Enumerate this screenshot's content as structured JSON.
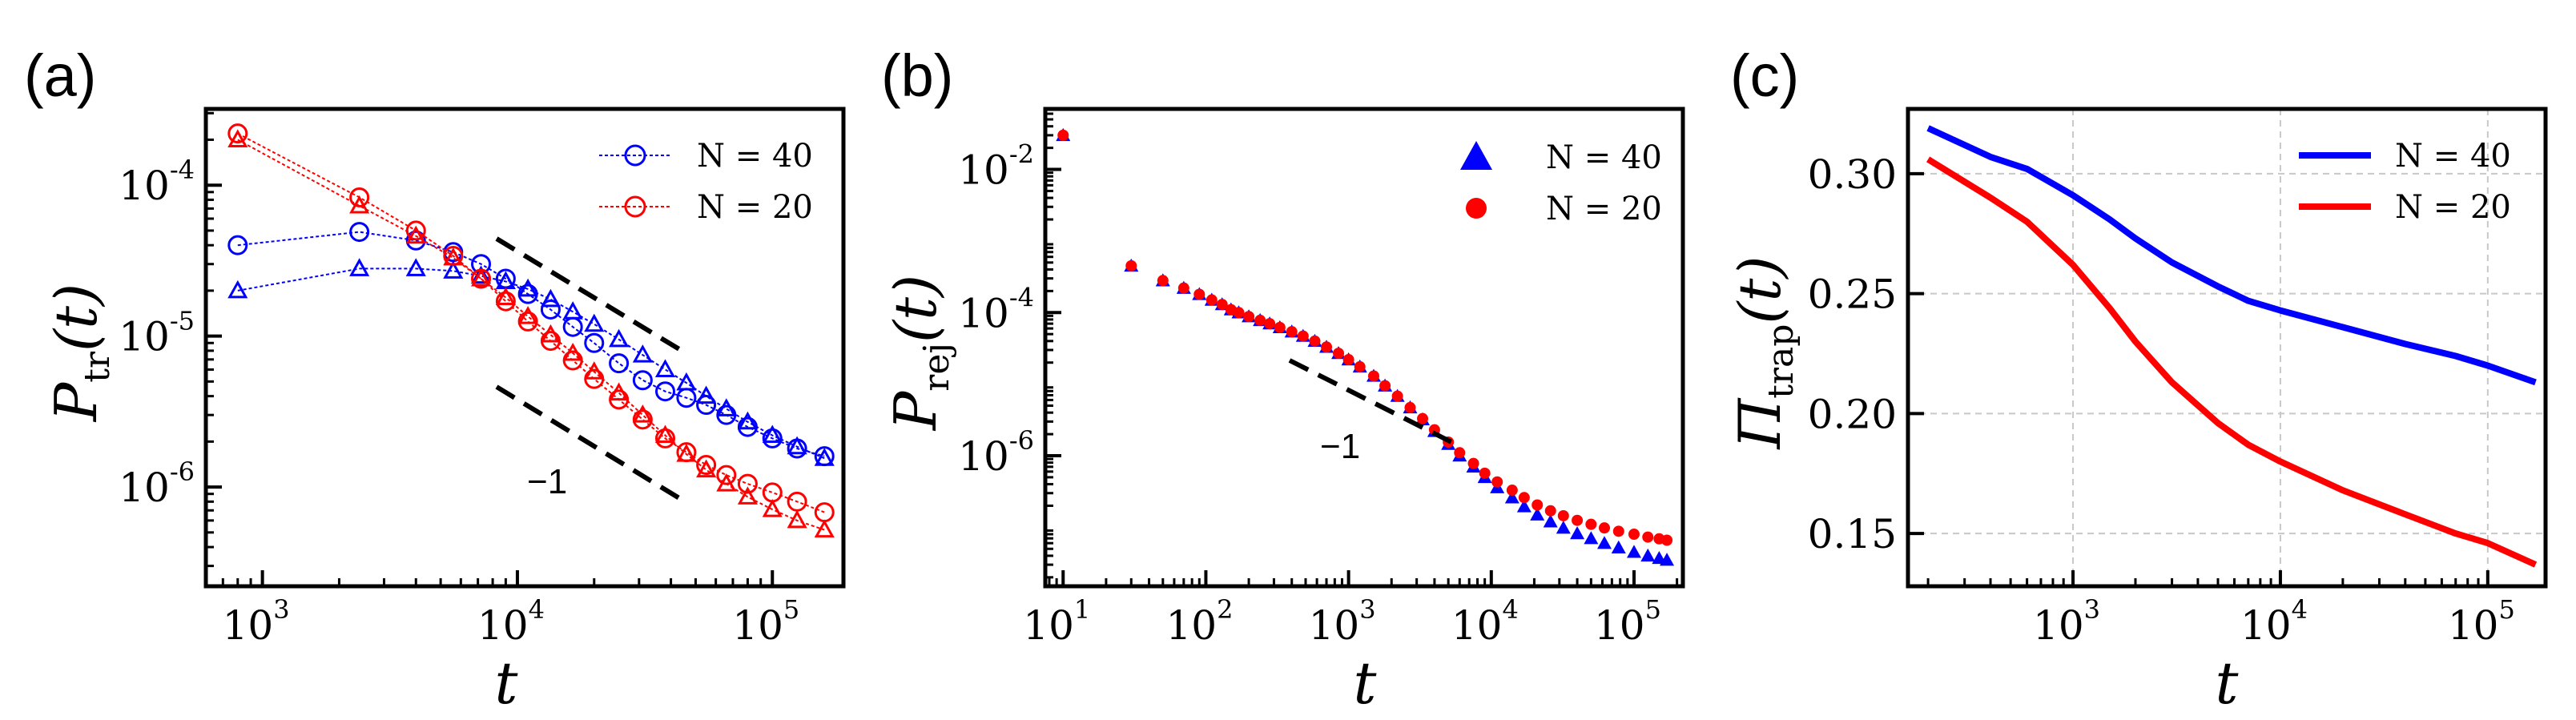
{
  "chart_data": [
    {
      "panel": "(a)",
      "type": "scatter",
      "xscale": "log",
      "yscale": "log",
      "xlim": [
        600,
        190000
      ],
      "ylim": [
        2.2e-07,
        0.00032
      ],
      "xlabel": "t",
      "ylabel_main": "P",
      "ylabel_sub": "tr",
      "ylabel_tail": "(t)",
      "xticks": [
        {
          "value": 1000,
          "base": "10",
          "exp": "3"
        },
        {
          "value": 10000,
          "base": "10",
          "exp": "4"
        },
        {
          "value": 100000,
          "base": "10",
          "exp": "5"
        }
      ],
      "yticks": [
        {
          "value": 1e-06,
          "base": "10",
          "exp": "-6"
        },
        {
          "value": 1e-05,
          "base": "10",
          "exp": "-5"
        },
        {
          "value": 0.0001,
          "base": "10",
          "exp": "-4"
        }
      ],
      "legend": {
        "position": "top-right",
        "entries": [
          {
            "label": "N = 40",
            "color": "#0000ff"
          },
          {
            "label": "N = 20",
            "color": "#ff0000"
          }
        ]
      },
      "annotation": "−1",
      "guide_slope": -1,
      "series": [
        {
          "name": "N = 40 circles",
          "color": "#0000ff",
          "marker": "circle",
          "x": [
            800,
            2400,
            4000,
            5600,
            7200,
            9000,
            11000,
            13500,
            16500,
            20000,
            25000,
            31000,
            38000,
            46000,
            55000,
            66000,
            80000,
            100000,
            125000,
            160000
          ],
          "y": [
            4e-05,
            4.9e-05,
            4.3e-05,
            3.6e-05,
            3e-05,
            2.4e-05,
            1.9e-05,
            1.5e-05,
            1.15e-05,
            9e-06,
            6.6e-06,
            5.1e-06,
            4.3e-06,
            3.9e-06,
            3.5e-06,
            3e-06,
            2.5e-06,
            2.1e-06,
            1.8e-06,
            1.6e-06
          ]
        },
        {
          "name": "N = 40 triangles",
          "color": "#0000ff",
          "marker": "triangle",
          "x": [
            800,
            2400,
            4000,
            5600,
            7200,
            9000,
            11000,
            13500,
            16500,
            20000,
            25000,
            31000,
            38000,
            46000,
            55000,
            66000,
            80000,
            100000,
            125000,
            160000
          ],
          "y": [
            2e-05,
            2.8e-05,
            2.8e-05,
            2.7e-05,
            2.5e-05,
            2.3e-05,
            2.05e-05,
            1.75e-05,
            1.45e-05,
            1.2e-05,
            9.5e-06,
            7.5e-06,
            6e-06,
            4.9e-06,
            4e-06,
            3.3e-06,
            2.7e-06,
            2.2e-06,
            1.85e-06,
            1.55e-06
          ]
        },
        {
          "name": "N = 20 circles",
          "color": "#ff0000",
          "marker": "circle",
          "x": [
            800,
            2400,
            4000,
            5600,
            7200,
            9000,
            11000,
            13500,
            16500,
            20000,
            25000,
            31000,
            38000,
            46000,
            55000,
            66000,
            80000,
            100000,
            125000,
            160000
          ],
          "y": [
            0.00022,
            8.3e-05,
            5e-05,
            3.4e-05,
            2.4e-05,
            1.7e-05,
            1.25e-05,
            9.3e-06,
            6.9e-06,
            5.2e-06,
            3.8e-06,
            2.8e-06,
            2.1e-06,
            1.7e-06,
            1.4e-06,
            1.2e-06,
            1.05e-06,
            9.2e-07,
            8e-07,
            6.8e-07
          ]
        },
        {
          "name": "N = 20 triangles",
          "color": "#ff0000",
          "marker": "triangle",
          "x": [
            800,
            2400,
            4000,
            5600,
            7200,
            9000,
            11000,
            13500,
            16500,
            20000,
            25000,
            31000,
            38000,
            46000,
            55000,
            66000,
            80000,
            100000,
            125000,
            160000
          ],
          "y": [
            0.0002,
            7.3e-05,
            4.6e-05,
            3.3e-05,
            2.4e-05,
            1.8e-05,
            1.35e-05,
            1.02e-05,
            7.7e-06,
            5.8e-06,
            4.2e-06,
            3e-06,
            2.2e-06,
            1.65e-06,
            1.3e-06,
            1.05e-06,
            8.6e-07,
            7.1e-07,
            6e-07,
            5.2e-07
          ]
        }
      ]
    },
    {
      "panel": "(b)",
      "type": "scatter",
      "xscale": "log",
      "yscale": "log",
      "xlim": [
        7.5,
        220000
      ],
      "ylim": [
        1.5e-08,
        0.07
      ],
      "xlabel": "t",
      "ylabel_main": "P",
      "ylabel_sub": "rej",
      "ylabel_tail": "(t)",
      "xticks": [
        {
          "value": 10,
          "base": "10",
          "exp": "1"
        },
        {
          "value": 100,
          "base": "10",
          "exp": "2"
        },
        {
          "value": 1000,
          "base": "10",
          "exp": "3"
        },
        {
          "value": 10000,
          "base": "10",
          "exp": "4"
        },
        {
          "value": 100000,
          "base": "10",
          "exp": "5"
        }
      ],
      "yticks": [
        {
          "value": 1e-06,
          "base": "10",
          "exp": "-6"
        },
        {
          "value": 0.0001,
          "base": "10",
          "exp": "-4"
        },
        {
          "value": 0.01,
          "base": "10",
          "exp": "-2"
        }
      ],
      "legend": {
        "position": "top-right",
        "entries": [
          {
            "label": "N = 40",
            "color": "#0000ff"
          },
          {
            "label": "N = 20",
            "color": "#ff0000"
          }
        ]
      },
      "annotation": "−1",
      "guide_slope": -1,
      "series": [
        {
          "name": "N = 40",
          "color": "#0000ff",
          "marker": "triangle",
          "x": [
            10,
            30,
            50,
            70,
            90,
            110,
            130,
            150,
            170,
            200,
            240,
            280,
            330,
            400,
            480,
            580,
            700,
            850,
            1000,
            1200,
            1500,
            1800,
            2200,
            2700,
            3300,
            4000,
            5000,
            6000,
            7500,
            9000,
            11000,
            14000,
            17000,
            21000,
            26000,
            32000,
            40000,
            50000,
            62000,
            78000,
            100000,
            125000,
            150000,
            170000
          ],
          "y": [
            0.03,
            0.00045,
            0.00028,
            0.00022,
            0.00018,
            0.00015,
            0.00013,
            0.00011,
            0.0001,
            8.8e-05,
            7.8e-05,
            7e-05,
            6.2e-05,
            5.4e-05,
            4.7e-05,
            4e-05,
            3.3e-05,
            2.7e-05,
            2.2e-05,
            1.75e-05,
            1.3e-05,
            9.5e-06,
            6.8e-06,
            4.7e-06,
            3.2e-06,
            2.2e-06,
            1.45e-06,
            1e-06,
            7e-07,
            5e-07,
            3.6e-07,
            2.6e-07,
            1.95e-07,
            1.5e-07,
            1.2e-07,
            9.8e-08,
            8.2e-08,
            7e-08,
            6e-08,
            5.2e-08,
            4.5e-08,
            4e-08,
            3.7e-08,
            3.5e-08
          ]
        },
        {
          "name": "N = 20",
          "color": "#ff0000",
          "marker": "circle",
          "x": [
            10,
            30,
            50,
            70,
            90,
            110,
            130,
            150,
            170,
            200,
            240,
            280,
            330,
            400,
            480,
            580,
            700,
            850,
            1000,
            1200,
            1500,
            1800,
            2200,
            2700,
            3300,
            4000,
            5000,
            6000,
            7500,
            9000,
            11000,
            14000,
            17000,
            21000,
            26000,
            32000,
            40000,
            50000,
            62000,
            78000,
            100000,
            125000,
            150000,
            170000
          ],
          "y": [
            0.03,
            0.00045,
            0.00028,
            0.00022,
            0.00018,
            0.00015,
            0.00013,
            0.00011,
            0.0001,
            8.8e-05,
            7.8e-05,
            7e-05,
            6.2e-05,
            5.4e-05,
            4.7e-05,
            4e-05,
            3.3e-05,
            2.7e-05,
            2.2e-05,
            1.75e-05,
            1.3e-05,
            9.5e-06,
            6.8e-06,
            4.7e-06,
            3.3e-06,
            2.3e-06,
            1.55e-06,
            1.1e-06,
            7.8e-07,
            5.7e-07,
            4.3e-07,
            3.3e-07,
            2.6e-07,
            2.05e-07,
            1.7e-07,
            1.45e-07,
            1.25e-07,
            1.1e-07,
            9.8e-08,
            8.8e-08,
            8e-08,
            7.3e-08,
            6.9e-08,
            6.6e-08
          ]
        }
      ]
    },
    {
      "panel": "(c)",
      "type": "line",
      "xscale": "log",
      "yscale": "linear",
      "xlim": [
        160,
        190000
      ],
      "ylim": [
        0.128,
        0.327
      ],
      "xlabel": "t",
      "ylabel_main": "Π",
      "ylabel_sub": "trap",
      "ylabel_tail": "(t)",
      "grid": true,
      "xticks": [
        {
          "value": 1000,
          "base": "10",
          "exp": "3"
        },
        {
          "value": 10000,
          "base": "10",
          "exp": "4"
        },
        {
          "value": 100000,
          "base": "10",
          "exp": "5"
        }
      ],
      "yticks": [
        {
          "value": 0.15,
          "label": "0.15"
        },
        {
          "value": 0.2,
          "label": "0.20"
        },
        {
          "value": 0.25,
          "label": "0.25"
        },
        {
          "value": 0.3,
          "label": "0.30"
        }
      ],
      "legend": {
        "position": "top-right",
        "entries": [
          {
            "label": "N = 40",
            "color": "#0000ff"
          },
          {
            "label": "N = 20",
            "color": "#ff0000"
          }
        ]
      },
      "series": [
        {
          "name": "N = 40",
          "color": "#0000ff",
          "x": [
            200,
            400,
            600,
            1000,
            1500,
            2000,
            3000,
            5000,
            7000,
            10000,
            20000,
            40000,
            70000,
            100000,
            170000
          ],
          "y": [
            0.319,
            0.307,
            0.302,
            0.291,
            0.281,
            0.273,
            0.263,
            0.253,
            0.247,
            0.243,
            0.236,
            0.229,
            0.224,
            0.22,
            0.213
          ]
        },
        {
          "name": "N = 20",
          "color": "#ff0000",
          "x": [
            200,
            400,
            600,
            1000,
            1500,
            2000,
            3000,
            5000,
            7000,
            10000,
            20000,
            40000,
            70000,
            100000,
            170000
          ],
          "y": [
            0.306,
            0.29,
            0.28,
            0.262,
            0.244,
            0.23,
            0.213,
            0.196,
            0.187,
            0.18,
            0.168,
            0.158,
            0.15,
            0.146,
            0.137
          ]
        }
      ]
    }
  ]
}
